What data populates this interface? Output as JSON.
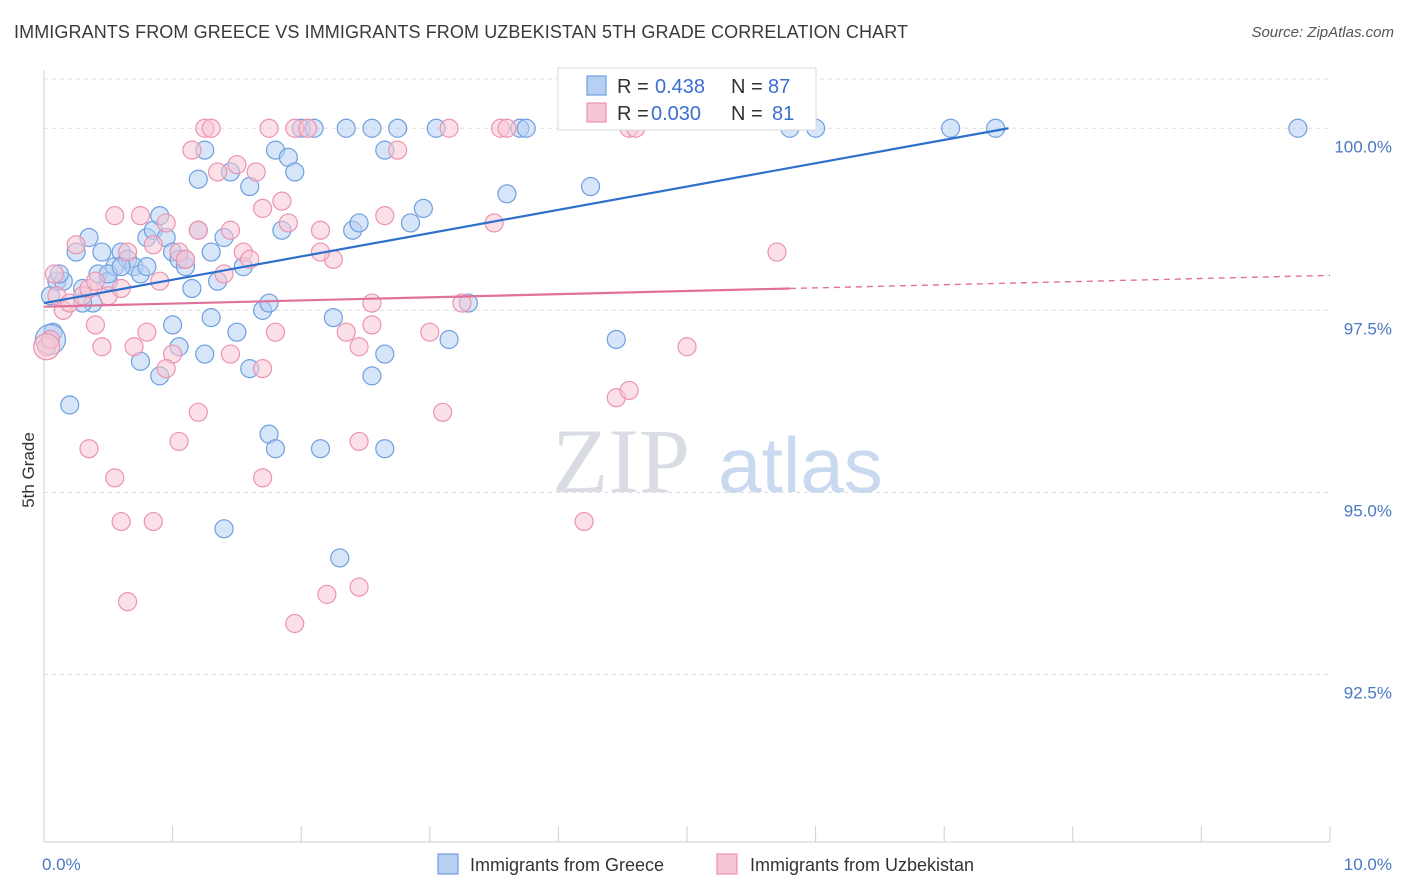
{
  "header": {
    "title": "IMMIGRANTS FROM GREECE VS IMMIGRANTS FROM UZBEKISTAN 5TH GRADE CORRELATION CHART",
    "source": "Source: ZipAtlas.com"
  },
  "watermark": {
    "zip": "ZIP",
    "atlas": "atlas"
  },
  "chart_data": {
    "type": "scatter",
    "title": "IMMIGRANTS FROM GREECE VS IMMIGRANTS FROM UZBEKISTAN 5TH GRADE CORRELATION CHART",
    "ylabel": "5th Grade",
    "xlabel": "",
    "xlim": [
      0,
      10
    ],
    "ylim": [
      90.2,
      100.8
    ],
    "x_tick_labels": [
      "0.0%",
      "10.0%"
    ],
    "y_ticks": [
      {
        "value": 100.0,
        "label": "100.0%"
      },
      {
        "value": 97.5,
        "label": "97.5%"
      },
      {
        "value": 95.0,
        "label": "95.0%"
      },
      {
        "value": 92.5,
        "label": "92.5%"
      }
    ],
    "grid": true,
    "legend_position": "top-center",
    "series": [
      {
        "name": "Immigrants from Greece",
        "color": "#6f9fe0",
        "fill": "#b6cff2",
        "line_color": "#2e6fcc",
        "R": "0.438",
        "N": "87",
        "trend": {
          "x0": 0.0,
          "y0": 97.6,
          "x1": 7.5,
          "y1": 100.0,
          "dashed_to": null
        },
        "points": [
          [
            0.05,
            97.7
          ],
          [
            0.07,
            97.2
          ],
          [
            0.05,
            97.1
          ],
          [
            0.1,
            97.9
          ],
          [
            0.15,
            97.9
          ],
          [
            0.12,
            98.0
          ],
          [
            0.2,
            96.2
          ],
          [
            0.25,
            98.3
          ],
          [
            0.3,
            97.8
          ],
          [
            0.35,
            98.5
          ],
          [
            0.38,
            97.6
          ],
          [
            0.42,
            98.0
          ],
          [
            0.45,
            98.3
          ],
          [
            0.5,
            97.9
          ],
          [
            0.55,
            98.1
          ],
          [
            0.6,
            98.3
          ],
          [
            0.65,
            98.2
          ],
          [
            0.7,
            98.1
          ],
          [
            0.75,
            98.0
          ],
          [
            0.8,
            98.5
          ],
          [
            0.85,
            98.6
          ],
          [
            0.9,
            98.8
          ],
          [
            0.95,
            98.5
          ],
          [
            1.0,
            98.3
          ],
          [
            1.05,
            98.2
          ],
          [
            1.1,
            98.1
          ],
          [
            1.15,
            97.8
          ],
          [
            1.2,
            99.3
          ],
          [
            1.25,
            99.7
          ],
          [
            1.3,
            98.3
          ],
          [
            1.35,
            97.9
          ],
          [
            1.4,
            98.5
          ],
          [
            1.45,
            99.4
          ],
          [
            1.5,
            97.2
          ],
          [
            1.55,
            98.1
          ],
          [
            1.6,
            99.2
          ],
          [
            1.7,
            97.5
          ],
          [
            1.75,
            97.6
          ],
          [
            1.8,
            99.7
          ],
          [
            1.85,
            98.6
          ],
          [
            1.9,
            99.6
          ],
          [
            1.95,
            99.4
          ],
          [
            2.0,
            100.0
          ],
          [
            2.1,
            100.0
          ],
          [
            2.35,
            100.0
          ],
          [
            2.4,
            98.6
          ],
          [
            2.45,
            98.7
          ],
          [
            2.55,
            100.0
          ],
          [
            2.65,
            99.7
          ],
          [
            2.75,
            100.0
          ],
          [
            2.85,
            98.7
          ],
          [
            2.95,
            98.9
          ],
          [
            3.05,
            100.0
          ],
          [
            3.6,
            99.1
          ],
          [
            3.7,
            100.0
          ],
          [
            3.75,
            100.0
          ],
          [
            4.25,
            99.2
          ],
          [
            5.8,
            100.0
          ],
          [
            6.0,
            100.0
          ],
          [
            7.05,
            100.0
          ],
          [
            7.4,
            100.0
          ],
          [
            9.75,
            100.0
          ],
          [
            1.0,
            97.3
          ],
          [
            1.05,
            97.0
          ],
          [
            0.75,
            96.8
          ],
          [
            0.9,
            96.6
          ],
          [
            1.25,
            96.9
          ],
          [
            1.6,
            96.7
          ],
          [
            2.55,
            96.6
          ],
          [
            2.65,
            96.9
          ],
          [
            3.15,
            97.1
          ],
          [
            3.3,
            97.6
          ],
          [
            4.45,
            97.1
          ],
          [
            1.75,
            95.8
          ],
          [
            1.8,
            95.6
          ],
          [
            2.15,
            95.6
          ],
          [
            2.65,
            95.6
          ],
          [
            1.4,
            94.5
          ],
          [
            2.3,
            94.1
          ],
          [
            0.3,
            97.6
          ],
          [
            0.5,
            98.0
          ],
          [
            0.6,
            98.1
          ],
          [
            0.8,
            98.1
          ],
          [
            1.1,
            98.2
          ],
          [
            1.3,
            97.4
          ],
          [
            2.25,
            97.4
          ],
          [
            1.2,
            98.6
          ]
        ]
      },
      {
        "name": "Immigrants from Uzbekistan",
        "color": "#ec93b0",
        "fill": "#f7c6d5",
        "line_color": "#e0719a",
        "R": "0.030",
        "N": "81",
        "trend": {
          "x0": 0.0,
          "y0": 97.55,
          "x1": 5.8,
          "y1": 97.8,
          "dashed_to": {
            "x": 10.0,
            "y": 97.98
          }
        },
        "points": [
          [
            0.02,
            97.0
          ],
          [
            0.05,
            97.1
          ],
          [
            0.08,
            98.0
          ],
          [
            0.1,
            97.7
          ],
          [
            0.15,
            97.5
          ],
          [
            0.2,
            97.6
          ],
          [
            0.25,
            98.4
          ],
          [
            0.3,
            97.7
          ],
          [
            0.35,
            97.8
          ],
          [
            0.4,
            97.3
          ],
          [
            0.45,
            97.0
          ],
          [
            0.5,
            97.7
          ],
          [
            0.55,
            98.8
          ],
          [
            0.6,
            97.8
          ],
          [
            0.65,
            98.3
          ],
          [
            0.7,
            97.0
          ],
          [
            0.75,
            98.8
          ],
          [
            0.8,
            97.2
          ],
          [
            0.85,
            98.4
          ],
          [
            0.9,
            97.9
          ],
          [
            0.95,
            98.7
          ],
          [
            1.0,
            96.9
          ],
          [
            1.05,
            98.3
          ],
          [
            1.1,
            98.2
          ],
          [
            1.15,
            99.7
          ],
          [
            1.2,
            98.6
          ],
          [
            1.25,
            100.0
          ],
          [
            1.3,
            100.0
          ],
          [
            1.35,
            99.4
          ],
          [
            1.4,
            98.0
          ],
          [
            1.45,
            98.6
          ],
          [
            1.5,
            99.5
          ],
          [
            1.55,
            98.3
          ],
          [
            1.6,
            98.2
          ],
          [
            1.65,
            99.4
          ],
          [
            1.7,
            98.9
          ],
          [
            1.75,
            100.0
          ],
          [
            1.8,
            97.2
          ],
          [
            1.85,
            99.0
          ],
          [
            1.9,
            98.7
          ],
          [
            1.95,
            100.0
          ],
          [
            2.05,
            100.0
          ],
          [
            2.15,
            98.6
          ],
          [
            2.25,
            98.2
          ],
          [
            2.35,
            97.2
          ],
          [
            2.45,
            97.0
          ],
          [
            2.55,
            97.3
          ],
          [
            2.65,
            98.8
          ],
          [
            2.75,
            99.7
          ],
          [
            3.0,
            97.2
          ],
          [
            3.15,
            100.0
          ],
          [
            3.25,
            97.6
          ],
          [
            3.5,
            98.7
          ],
          [
            3.55,
            100.0
          ],
          [
            3.6,
            100.0
          ],
          [
            5.0,
            97.0
          ],
          [
            4.55,
            100.0
          ],
          [
            4.6,
            100.0
          ],
          [
            4.45,
            96.3
          ],
          [
            4.55,
            96.4
          ],
          [
            5.7,
            98.3
          ],
          [
            1.45,
            96.9
          ],
          [
            1.7,
            96.7
          ],
          [
            3.1,
            96.1
          ],
          [
            1.2,
            96.1
          ],
          [
            1.05,
            95.7
          ],
          [
            0.35,
            95.6
          ],
          [
            0.55,
            95.2
          ],
          [
            1.7,
            95.2
          ],
          [
            2.45,
            95.7
          ],
          [
            0.6,
            94.6
          ],
          [
            0.85,
            94.6
          ],
          [
            4.2,
            94.6
          ],
          [
            0.65,
            93.5
          ],
          [
            2.2,
            93.6
          ],
          [
            2.45,
            93.7
          ],
          [
            1.95,
            93.2
          ],
          [
            0.95,
            96.7
          ],
          [
            0.4,
            97.9
          ],
          [
            2.15,
            98.3
          ],
          [
            2.55,
            97.6
          ]
        ]
      }
    ]
  },
  "legend": {
    "r_label": "R =",
    "n_label": "N ="
  }
}
